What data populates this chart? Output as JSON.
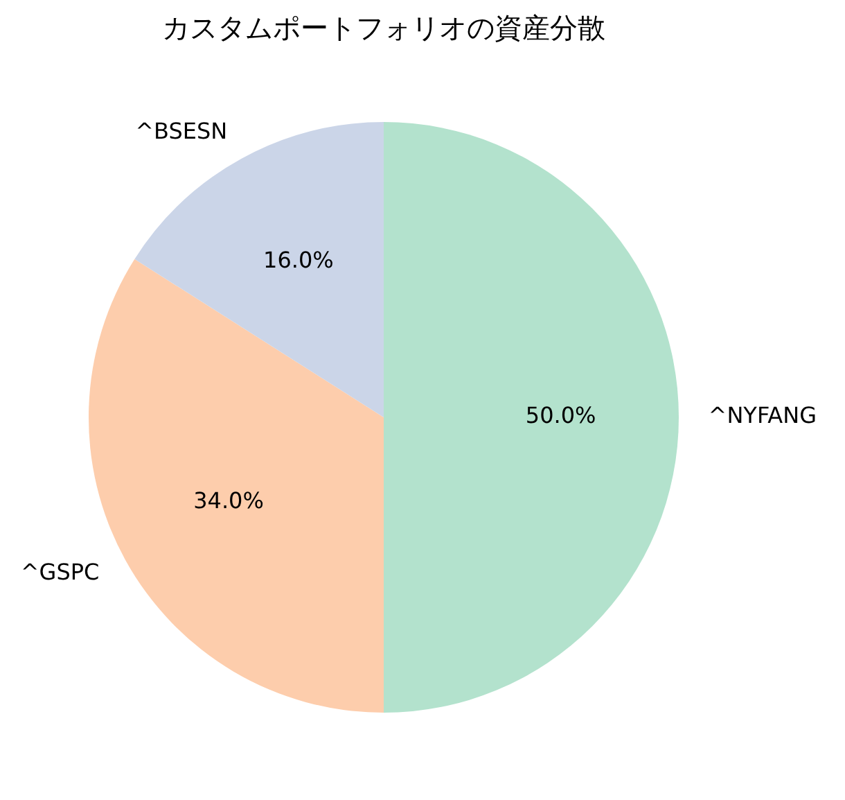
{
  "chart_data": {
    "type": "pie",
    "title": "カスタムポートフォリオの資産分散",
    "categories": [
      "^NYFANG",
      "^GSPC",
      "^BSESN"
    ],
    "values": [
      50,
      34,
      16
    ],
    "colors": [
      "#b3e2cd",
      "#fdcdac",
      "#cbd5e8"
    ],
    "value_labels": [
      "50.0%",
      "34.0%",
      "16.0%"
    ],
    "legend": false
  }
}
